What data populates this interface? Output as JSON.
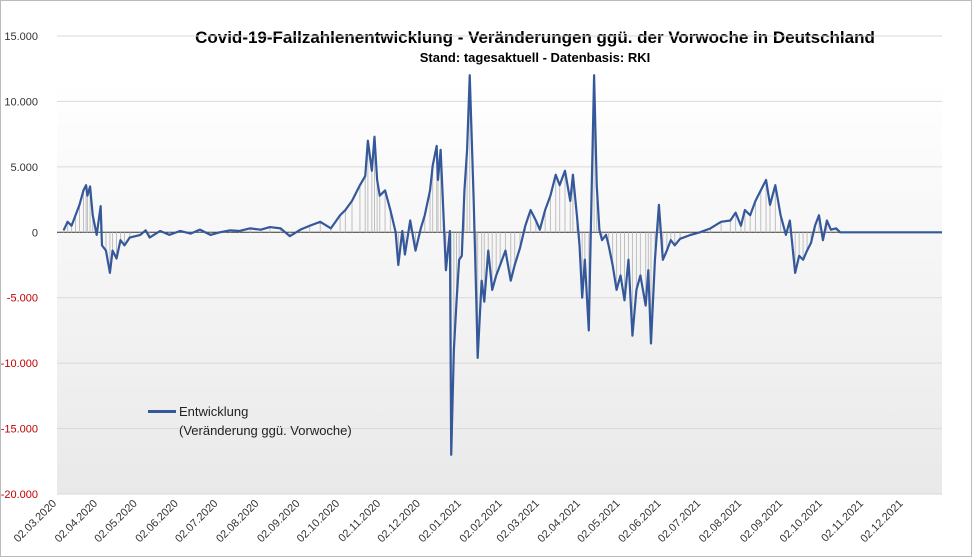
{
  "chart_data": {
    "type": "line",
    "title": "Covid-19-Fallzahlenentwicklung - Veränderungen ggü. der Vorwoche in Deutschland",
    "subtitle": "Stand: tagesaktuell - Datenbasis: RKI",
    "x": [
      "07.03.2020",
      "10.03.2020",
      "13.03.2020",
      "16.03.2020",
      "19.03.2020",
      "22.03.2020",
      "24.03.2020",
      "25.03.2020",
      "27.03.2020",
      "29.03.2020",
      "01.04.2020",
      "04.04.2020",
      "05.04.2020",
      "08.04.2020",
      "11.04.2020",
      "13.04.2020",
      "16.04.2020",
      "19.04.2020",
      "22.04.2020",
      "26.04.2020",
      "04.05.2020",
      "08.05.2020",
      "11.05.2020",
      "19.05.2020",
      "26.05.2020",
      "03.06.2020",
      "11.06.2020",
      "18.06.2020",
      "26.06.2020",
      "03.07.2020",
      "11.07.2020",
      "18.07.2020",
      "26.07.2020",
      "03.08.2020",
      "10.08.2020",
      "18.08.2020",
      "25.08.2020",
      "02.09.2020",
      "09.09.2020",
      "17.09.2020",
      "25.09.2020",
      "02.10.2020",
      "06.10.2020",
      "11.10.2020",
      "17.10.2020",
      "21.10.2020",
      "23.10.2020",
      "26.10.2020",
      "28.10.2020",
      "30.10.2020",
      "01.11.2020",
      "05.11.2020",
      "09.11.2020",
      "13.11.2020",
      "15.11.2020",
      "18.11.2020",
      "20.11.2020",
      "24.11.2020",
      "28.11.2020",
      "02.12.2020",
      "05.12.2020",
      "09.12.2020",
      "11.12.2020",
      "14.12.2020",
      "15.12.2020",
      "17.12.2020",
      "19.12.2020",
      "21.12.2020",
      "24.12.2020",
      "25.12.2020",
      "27.12.2020",
      "29.12.2020",
      "31.12.2020",
      "02.01.2021",
      "04.01.2021",
      "06.01.2021",
      "08.01.2021",
      "11.01.2021",
      "13.01.2021",
      "14.01.2021",
      "17.01.2021",
      "19.01.2021",
      "22.01.2021",
      "25.01.2021",
      "28.01.2021",
      "31.01.2021",
      "04.02.2021",
      "08.02.2021",
      "11.02.2021",
      "15.02.2021",
      "19.02.2021",
      "23.02.2021",
      "27.02.2021",
      "02.03.2021",
      "06.03.2021",
      "10.03.2021",
      "14.03.2021",
      "17.03.2021",
      "21.03.2021",
      "25.03.2021",
      "27.03.2021",
      "30.03.2021",
      "01.04.2021",
      "03.04.2021",
      "05.04.2021",
      "08.04.2021",
      "10.04.2021",
      "12.04.2021",
      "14.04.2021",
      "16.04.2021",
      "18.04.2021",
      "21.04.2021",
      "23.04.2021",
      "26.04.2021",
      "29.04.2021",
      "02.05.2021",
      "05.05.2021",
      "08.05.2021",
      "11.05.2021",
      "14.05.2021",
      "17.05.2021",
      "21.05.2021",
      "23.05.2021",
      "25.05.2021",
      "28.05.2021",
      "31.05.2021",
      "03.06.2021",
      "06.06.2021",
      "09.06.2021",
      "12.06.2021",
      "16.06.2021",
      "24.06.2021",
      "01.07.2021",
      "09.07.2021",
      "17.07.2021",
      "24.07.2021",
      "28.07.2021",
      "01.08.2021",
      "04.08.2021",
      "08.08.2021",
      "12.08.2021",
      "16.08.2021",
      "20.08.2021",
      "23.08.2021",
      "27.08.2021",
      "31.08.2021",
      "04.09.2021",
      "07.09.2021",
      "11.09.2021",
      "14.09.2021",
      "17.09.2021",
      "20.09.2021",
      "23.09.2021",
      "26.09.2021",
      "29.09.2021",
      "02.10.2021",
      "05.10.2021",
      "08.10.2021",
      "12.10.2021",
      "15.10.2021",
      "31.12.2021"
    ],
    "series": [
      {
        "name": "Entwicklung\n(Veränderung ggü. Vorwoche)",
        "color": "#34589a",
        "values": [
          150,
          800,
          500,
          1300,
          2100,
          3200,
          3600,
          2800,
          3500,
          1300,
          -200,
          2000,
          -1000,
          -1400,
          -3100,
          -1400,
          -2000,
          -600,
          -1000,
          -400,
          -200,
          150,
          -400,
          100,
          -200,
          100,
          -100,
          200,
          -200,
          0,
          150,
          100,
          300,
          200,
          400,
          300,
          -300,
          200,
          500,
          800,
          300,
          1300,
          1700,
          2400,
          3600,
          4300,
          7000,
          4700,
          7300,
          4000,
          2800,
          3200,
          1700,
          0,
          -2500,
          100,
          -1700,
          900,
          -1400,
          300,
          1300,
          3200,
          5100,
          6600,
          4000,
          6300,
          1700,
          -2900,
          100,
          -17000,
          -9000,
          -5300,
          -2100,
          -1800,
          3200,
          6300,
          12000,
          2400,
          -5300,
          -9600,
          -3700,
          -5300,
          -1400,
          -4400,
          -3300,
          -2500,
          -1400,
          -3700,
          -2500,
          -1200,
          500,
          1700,
          900,
          200,
          1700,
          2800,
          4400,
          3600,
          4700,
          2400,
          4400,
          1300,
          -1000,
          -5000,
          -2100,
          -7500,
          2400,
          12000,
          3600,
          200,
          -600,
          -200,
          -1000,
          -2500,
          -4400,
          -3300,
          -5200,
          -2100,
          -7900,
          -4400,
          -3300,
          -5600,
          -2900,
          -8500,
          -2100,
          2100,
          -2100,
          -1400,
          -600,
          -1000,
          -500,
          -200,
          0,
          300,
          800,
          900,
          1500,
          500,
          1700,
          1300,
          2400,
          3200,
          4000,
          2100,
          3600,
          1300,
          -200,
          900,
          -3100,
          -1800,
          -2100,
          -1400,
          -800,
          500,
          1300,
          -600,
          900,
          200,
          300,
          0,
          0
        ]
      }
    ],
    "xlim": [
      "02.03.2020",
      "31.12.2021"
    ],
    "xticks": [
      "02.03.2020",
      "02.04.2020",
      "02.05.2020",
      "02.06.2020",
      "02.07.2020",
      "02.08.2020",
      "02.09.2020",
      "02.10.2020",
      "02.11.2020",
      "02.12.2020",
      "02.01.2021",
      "02.02.2021",
      "02.03.2021",
      "02.04.2021",
      "02.05.2021",
      "02.06.2021",
      "02.07.2021",
      "02.08.2021",
      "02.09.2021",
      "02.10.2021",
      "02.11.2021",
      "02.12.2021"
    ],
    "ylim": [
      -20000,
      15000
    ],
    "yticks": [
      {
        "value": -20000,
        "label": "-20.000"
      },
      {
        "value": -15000,
        "label": "-15.000"
      },
      {
        "value": -10000,
        "label": "-10.000"
      },
      {
        "value": -5000,
        "label": "-5.000"
      },
      0,
      {
        "value": 5000,
        "label": "5.000"
      },
      {
        "value": 10000,
        "label": "10.000"
      },
      {
        "value": 15000,
        "label": "15.000"
      }
    ],
    "grid": true,
    "negative_tick_color": "#c00000",
    "drop_line_color": "#bfbfbf"
  }
}
